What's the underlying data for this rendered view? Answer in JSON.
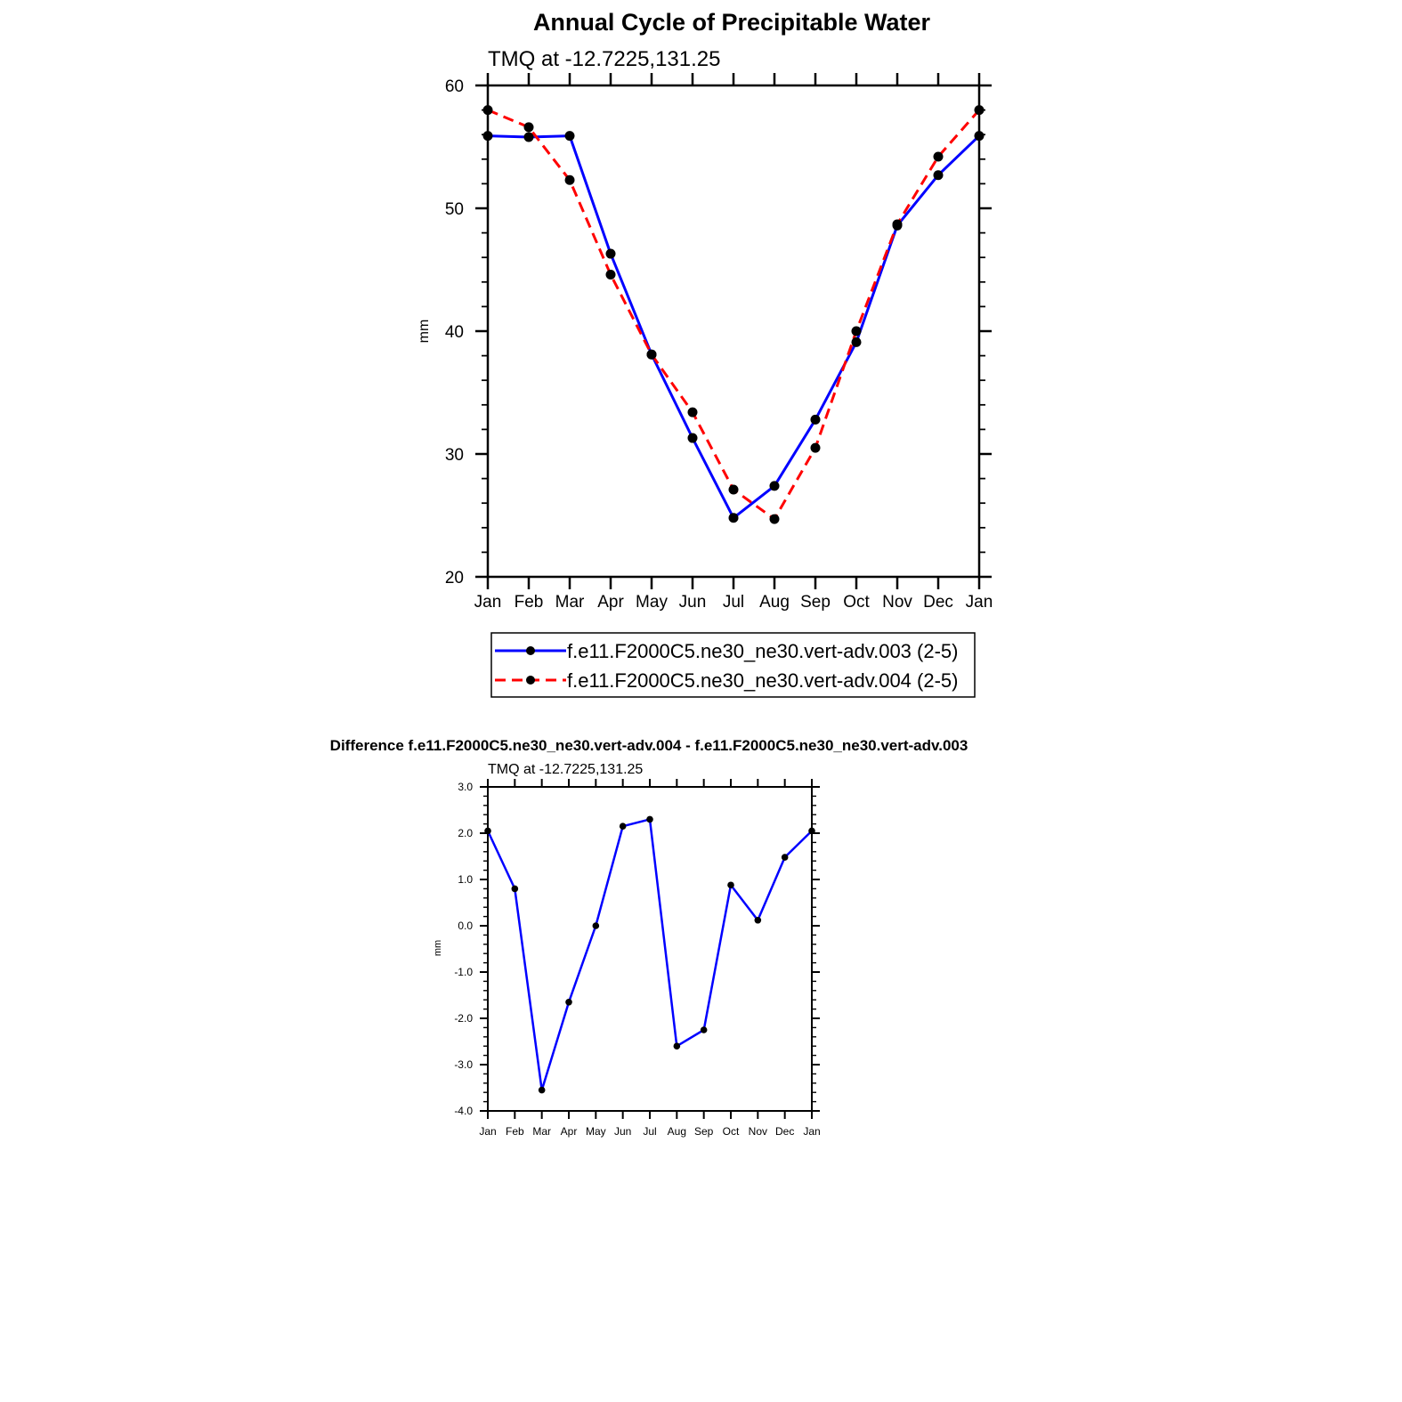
{
  "chart_data": [
    {
      "type": "line",
      "title": "Annual Cycle of Precipitable Water",
      "subtitle": "TMQ at -12.7225,131.25",
      "xlabel": "",
      "ylabel": "mm",
      "categories": [
        "Jan",
        "Feb",
        "Mar",
        "Apr",
        "May",
        "Jun",
        "Jul",
        "Aug",
        "Sep",
        "Oct",
        "Nov",
        "Dec",
        "Jan"
      ],
      "ylim": [
        20,
        60
      ],
      "yticks": [
        "20",
        "30",
        "40",
        "50",
        "60"
      ],
      "grid": false,
      "legend_position": "bottom",
      "series": [
        {
          "name": "f.e11.F2000C5.ne30_ne30.vert-adv.003 (2-5)",
          "color": "#0000ff",
          "dash": "solid",
          "values": [
            55.9,
            55.8,
            55.9,
            46.3,
            38.1,
            31.3,
            24.8,
            27.4,
            32.8,
            39.1,
            48.6,
            52.7,
            55.9
          ]
        },
        {
          "name": "f.e11.F2000C5.ne30_ne30.vert-adv.004 (2-5)",
          "color": "#ff0000",
          "dash": "dashed",
          "values": [
            58.0,
            56.6,
            52.3,
            44.6,
            38.1,
            33.4,
            27.1,
            24.7,
            30.5,
            40.0,
            48.7,
            54.2,
            58.0
          ]
        }
      ]
    },
    {
      "type": "line",
      "title": "Difference f.e11.F2000C5.ne30_ne30.vert-adv.004 - f.e11.F2000C5.ne30_ne30.vert-adv.003",
      "subtitle": "TMQ at -12.7225,131.25",
      "xlabel": "",
      "ylabel": "mm",
      "categories": [
        "Jan",
        "Feb",
        "Mar",
        "Apr",
        "May",
        "Jun",
        "Jul",
        "Aug",
        "Sep",
        "Oct",
        "Nov",
        "Dec",
        "Jan"
      ],
      "ylim": [
        -4.0,
        3.0
      ],
      "yticks": [
        "-4.0",
        "-3.0",
        "-2.0",
        "-1.0",
        "0.0",
        "1.0",
        "2.0",
        "3.0"
      ],
      "grid": false,
      "series": [
        {
          "name": "",
          "color": "#0000ff",
          "dash": "solid",
          "values": [
            2.05,
            0.8,
            -3.55,
            -1.65,
            0.0,
            2.15,
            2.3,
            -2.6,
            -2.25,
            0.88,
            0.12,
            1.48,
            2.05
          ]
        }
      ]
    }
  ]
}
